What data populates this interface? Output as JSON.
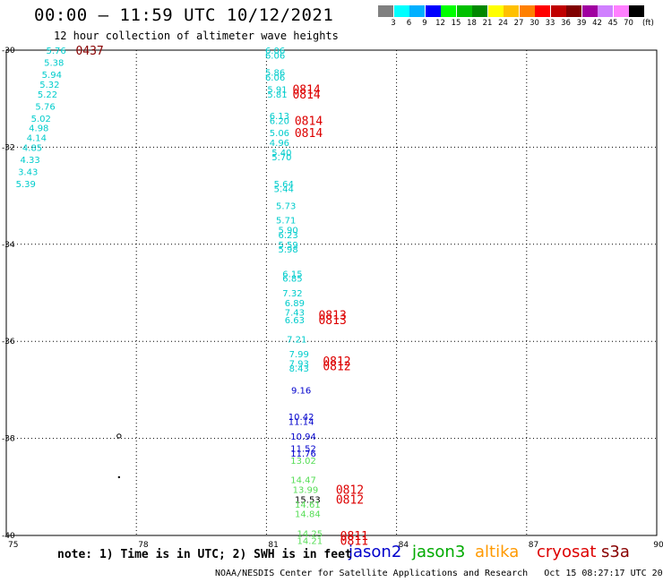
{
  "header": {
    "title": "00:00 – 11:59 UTC 10/12/2021",
    "subtitle": "12 hour collection of altimeter wave heights"
  },
  "color_scale": {
    "unit": "(ft)",
    "bins": [
      {
        "label": "3",
        "color": "#808080"
      },
      {
        "label": "6",
        "color": "#00ffff"
      },
      {
        "label": "9",
        "color": "#00b0ff"
      },
      {
        "label": "12",
        "color": "#0000ff"
      },
      {
        "label": "15",
        "color": "#00ff00"
      },
      {
        "label": "18",
        "color": "#00c000"
      },
      {
        "label": "21",
        "color": "#008800"
      },
      {
        "label": "24",
        "color": "#ffff00"
      },
      {
        "label": "27",
        "color": "#ffc000"
      },
      {
        "label": "30",
        "color": "#ff8000"
      },
      {
        "label": "33",
        "color": "#ff0000"
      },
      {
        "label": "36",
        "color": "#c00000"
      },
      {
        "label": "39",
        "color": "#800000"
      },
      {
        "label": "42",
        "color": "#a000a0"
      },
      {
        "label": "45",
        "color": "#d080ff"
      },
      {
        "label": "70",
        "color": "#ff80ff"
      },
      {
        "label": "",
        "color": "#000000"
      }
    ]
  },
  "footer": {
    "note": "note: 1) Time is in UTC; 2) SWH is in feet",
    "credit": "NOAA/NESDIS Center for Satellite Applications and Research   Oct 15 08:27:17 UTC 2021"
  },
  "satellites": [
    {
      "name": "jason2",
      "color": "#0000cc"
    },
    {
      "name": "jason3",
      "color": "#00aa00"
    },
    {
      "name": "altika",
      "color": "#ff9900"
    },
    {
      "name": "cryosat",
      "color": "#dd0000"
    },
    {
      "name": "s3a",
      "color": "#880000"
    }
  ],
  "chart_data": {
    "type": "scatter",
    "title": "00:00 – 11:59 UTC 10/12/2021",
    "subtitle": "12 hour collection of altimeter wave heights",
    "xlim": [
      75,
      90
    ],
    "ylim": [
      -40,
      -30
    ],
    "xticks": [
      "75",
      "78",
      "81",
      "84",
      "87",
      "90"
    ],
    "yticks": [
      "-30",
      "-32",
      "-34",
      "-36",
      "-38",
      "-40"
    ],
    "grid": true,
    "swh_points": [
      {
        "lon": 76.15,
        "lat": -30.0,
        "value": "5.76",
        "color": "#00cccc"
      },
      {
        "lon": 76.1,
        "lat": -30.25,
        "value": "5.38",
        "color": "#00cccc"
      },
      {
        "lon": 76.05,
        "lat": -30.5,
        "value": "5.94",
        "color": "#00cccc"
      },
      {
        "lon": 76.0,
        "lat": -30.7,
        "value": "5.32",
        "color": "#00cccc"
      },
      {
        "lon": 75.95,
        "lat": -30.9,
        "value": "5.22",
        "color": "#00cccc"
      },
      {
        "lon": 75.9,
        "lat": -31.15,
        "value": "5.76",
        "color": "#00cccc"
      },
      {
        "lon": 75.8,
        "lat": -31.4,
        "value": "5.02",
        "color": "#00cccc"
      },
      {
        "lon": 75.75,
        "lat": -31.6,
        "value": "4.98",
        "color": "#00cccc"
      },
      {
        "lon": 75.7,
        "lat": -31.8,
        "value": "4.14",
        "color": "#00cccc"
      },
      {
        "lon": 75.6,
        "lat": -32.0,
        "value": "4.85",
        "color": "#00cccc"
      },
      {
        "lon": 75.55,
        "lat": -32.25,
        "value": "4.33",
        "color": "#00cccc"
      },
      {
        "lon": 75.5,
        "lat": -32.5,
        "value": "3.43",
        "color": "#00cccc"
      },
      {
        "lon": 75.45,
        "lat": -32.75,
        "value": "5.39",
        "color": "#00cccc"
      },
      {
        "lon": 81.2,
        "lat": -30.0,
        "value": "6.06",
        "color": "#00cccc"
      },
      {
        "lon": 81.2,
        "lat": -30.1,
        "value": "6.06",
        "color": "#00cccc"
      },
      {
        "lon": 81.2,
        "lat": -30.45,
        "value": "5.86",
        "color": "#00cccc"
      },
      {
        "lon": 81.2,
        "lat": -30.55,
        "value": "6.06",
        "color": "#00cccc"
      },
      {
        "lon": 81.25,
        "lat": -30.8,
        "value": "5.91",
        "color": "#00cccc"
      },
      {
        "lon": 81.25,
        "lat": -30.9,
        "value": "5.81",
        "color": "#00cccc"
      },
      {
        "lon": 81.3,
        "lat": -31.35,
        "value": "6.13",
        "color": "#00cccc"
      },
      {
        "lon": 81.3,
        "lat": -31.45,
        "value": "6.20",
        "color": "#00cccc"
      },
      {
        "lon": 81.3,
        "lat": -31.7,
        "value": "5.06",
        "color": "#00cccc"
      },
      {
        "lon": 81.3,
        "lat": -31.9,
        "value": "4.96",
        "color": "#00cccc"
      },
      {
        "lon": 81.35,
        "lat": -32.1,
        "value": "5.40",
        "color": "#00cccc"
      },
      {
        "lon": 81.35,
        "lat": -32.2,
        "value": "5.70",
        "color": "#00cccc"
      },
      {
        "lon": 81.4,
        "lat": -32.75,
        "value": "5.64",
        "color": "#00cccc"
      },
      {
        "lon": 81.4,
        "lat": -32.85,
        "value": "5.44",
        "color": "#00cccc"
      },
      {
        "lon": 81.45,
        "lat": -33.2,
        "value": "5.73",
        "color": "#00cccc"
      },
      {
        "lon": 81.45,
        "lat": -33.5,
        "value": "5.71",
        "color": "#00cccc"
      },
      {
        "lon": 81.5,
        "lat": -33.7,
        "value": "5.90",
        "color": "#00cccc"
      },
      {
        "lon": 81.5,
        "lat": -33.8,
        "value": "6.23",
        "color": "#00cccc"
      },
      {
        "lon": 81.5,
        "lat": -34.0,
        "value": "5.59",
        "color": "#00cccc"
      },
      {
        "lon": 81.5,
        "lat": -34.1,
        "value": "5.98",
        "color": "#00cccc"
      },
      {
        "lon": 81.6,
        "lat": -34.6,
        "value": "6.15",
        "color": "#00cccc"
      },
      {
        "lon": 81.6,
        "lat": -34.7,
        "value": "6.85",
        "color": "#00cccc"
      },
      {
        "lon": 81.6,
        "lat": -35.0,
        "value": "7.32",
        "color": "#00cccc"
      },
      {
        "lon": 81.65,
        "lat": -35.2,
        "value": "6.89",
        "color": "#00cccc"
      },
      {
        "lon": 81.65,
        "lat": -35.4,
        "value": "7.43",
        "color": "#00cccc"
      },
      {
        "lon": 81.65,
        "lat": -35.55,
        "value": "6.63",
        "color": "#00cccc"
      },
      {
        "lon": 81.7,
        "lat": -35.95,
        "value": "7.21",
        "color": "#00cccc"
      },
      {
        "lon": 81.75,
        "lat": -36.25,
        "value": "7.99",
        "color": "#00cccc"
      },
      {
        "lon": 81.75,
        "lat": -36.45,
        "value": "7.93",
        "color": "#00cccc"
      },
      {
        "lon": 81.75,
        "lat": -36.55,
        "value": "8.43",
        "color": "#00cccc"
      },
      {
        "lon": 81.8,
        "lat": -37.0,
        "value": "9.16",
        "color": "#0000cc"
      },
      {
        "lon": 81.8,
        "lat": -37.55,
        "value": "10.42",
        "color": "#0000cc"
      },
      {
        "lon": 81.8,
        "lat": -37.65,
        "value": "11.14",
        "color": "#0000cc"
      },
      {
        "lon": 81.85,
        "lat": -37.95,
        "value": "10.94",
        "color": "#0000cc"
      },
      {
        "lon": 81.85,
        "lat": -38.2,
        "value": "11.52",
        "color": "#0000cc"
      },
      {
        "lon": 81.85,
        "lat": -38.3,
        "value": "11.76",
        "color": "#0000cc"
      },
      {
        "lon": 81.85,
        "lat": -38.45,
        "value": "13.02",
        "color": "#55dd55"
      },
      {
        "lon": 81.85,
        "lat": -38.85,
        "value": "14.47",
        "color": "#55dd55"
      },
      {
        "lon": 81.9,
        "lat": -39.05,
        "value": "13.99",
        "color": "#55dd55"
      },
      {
        "lon": 81.95,
        "lat": -39.25,
        "value": "15.53",
        "color": "#000000"
      },
      {
        "lon": 81.95,
        "lat": -39.35,
        "value": "14.61",
        "color": "#55dd55"
      },
      {
        "lon": 81.95,
        "lat": -39.55,
        "value": "14.84",
        "color": "#55dd55"
      },
      {
        "lon": 82.0,
        "lat": -39.95,
        "value": "14.25",
        "color": "#55dd55"
      },
      {
        "lon": 82.0,
        "lat": -40.1,
        "value": "14.21",
        "color": "#55dd55"
      }
    ],
    "time_labels": [
      {
        "lon": 76.6,
        "lat": -30.0,
        "text": "0437",
        "color": "#880000"
      },
      {
        "lon": 81.6,
        "lat": -30.8,
        "text": "0814",
        "color": "#dd0000"
      },
      {
        "lon": 81.6,
        "lat": -30.9,
        "text": "0814",
        "color": "#dd0000"
      },
      {
        "lon": 81.65,
        "lat": -31.45,
        "text": "0814",
        "color": "#dd0000"
      },
      {
        "lon": 81.65,
        "lat": -31.7,
        "text": "0814",
        "color": "#dd0000"
      },
      {
        "lon": 82.2,
        "lat": -35.45,
        "text": "0813",
        "color": "#dd0000"
      },
      {
        "lon": 82.2,
        "lat": -35.55,
        "text": "0813",
        "color": "#dd0000"
      },
      {
        "lon": 82.3,
        "lat": -36.4,
        "text": "0812",
        "color": "#dd0000"
      },
      {
        "lon": 82.3,
        "lat": -36.5,
        "text": "0812",
        "color": "#dd0000"
      },
      {
        "lon": 82.6,
        "lat": -39.05,
        "text": "0812",
        "color": "#dd0000"
      },
      {
        "lon": 82.6,
        "lat": -39.25,
        "text": "0812",
        "color": "#dd0000"
      },
      {
        "lon": 82.7,
        "lat": -40.0,
        "text": "0811",
        "color": "#dd0000"
      },
      {
        "lon": 82.7,
        "lat": -40.1,
        "text": "0811",
        "color": "#dd0000"
      }
    ],
    "markers": [
      {
        "lon": 77.6,
        "lat": -37.95,
        "symbol": "o"
      },
      {
        "lon": 77.6,
        "lat": -38.8,
        "symbol": "."
      }
    ]
  }
}
